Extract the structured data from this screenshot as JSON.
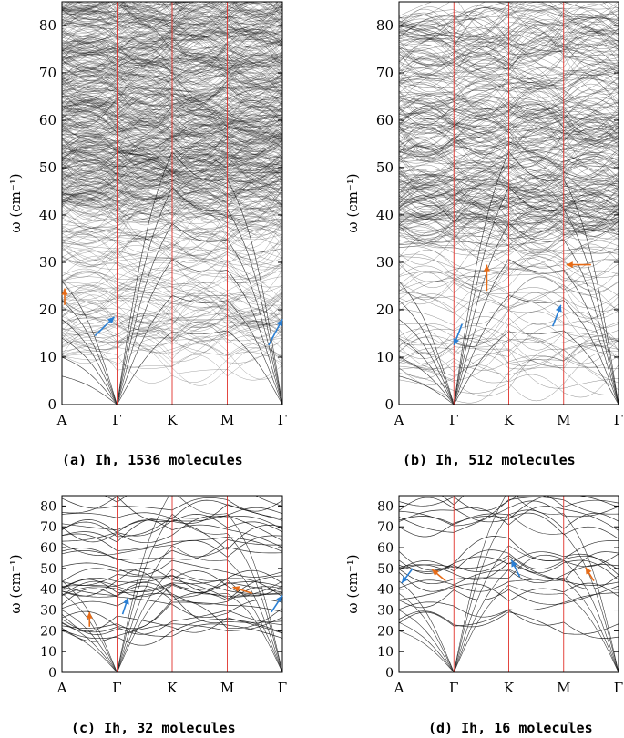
{
  "chart_data": [
    {
      "type": "line",
      "caption": {
        "label": "(a)",
        "name": "Ih",
        "count": "1536 molecules"
      },
      "ylabel": "ω (cm⁻¹)",
      "ylim": [
        0,
        85
      ],
      "yticks": [
        0,
        10,
        20,
        30,
        40,
        50,
        60,
        70,
        80
      ],
      "x_points": [
        "A",
        "Γ",
        "K",
        "M",
        "Γ"
      ],
      "x_positions": [
        0,
        1,
        2,
        3,
        4
      ],
      "acoustic_at_gamma_edges": [
        11,
        15,
        19,
        23
      ],
      "band_density_high": [
        45,
        85
      ],
      "annotations": [
        {
          "color": "#e66b17",
          "at": [
            "A",
            21
          ],
          "to": [
            "A",
            24.5
          ]
        },
        {
          "color": "#2a7fd4",
          "at": [
            0.6,
            14.5
          ],
          "to": [
            0.95,
            18.5
          ]
        },
        {
          "color": "#2a7fd4",
          "at": [
            3.75,
            12.5
          ],
          "to": [
            4.0,
            18
          ]
        }
      ]
    },
    {
      "type": "line",
      "caption": {
        "label": "(b)",
        "name": "Ih",
        "count": "512 molecules"
      },
      "ylabel": "ω (cm⁻¹)",
      "ylim": [
        0,
        85
      ],
      "yticks": [
        0,
        10,
        20,
        30,
        40,
        50,
        60,
        70,
        80
      ],
      "x_points": [
        "A",
        "Γ",
        "K",
        "M",
        "Γ"
      ],
      "x_positions": [
        0,
        1,
        2,
        3,
        4
      ],
      "band_density_high": [
        38,
        85
      ],
      "annotations": [
        {
          "color": "#2a7fd4",
          "at": [
            1.15,
            17
          ],
          "to": [
            1.0,
            12.5
          ]
        },
        {
          "color": "#e66b17",
          "at": [
            1.6,
            24
          ],
          "to": [
            1.6,
            29.5
          ]
        },
        {
          "color": "#2a7fd4",
          "at": [
            2.8,
            16.5
          ],
          "to": [
            2.95,
            21
          ]
        },
        {
          "color": "#e66b17",
          "at": [
            3.5,
            29.5
          ],
          "to": [
            3.05,
            29.5
          ]
        }
      ]
    },
    {
      "type": "line",
      "caption": {
        "label": "(c)",
        "name": "Ih",
        "count": "32 molecules"
      },
      "ylabel": "ω (cm⁻¹)",
      "ylim": [
        0,
        85
      ],
      "yticks": [
        0,
        10,
        20,
        30,
        40,
        50,
        60,
        70,
        80
      ],
      "x_points": [
        "A",
        "Γ",
        "K",
        "M",
        "Γ"
      ],
      "x_positions": [
        0,
        1,
        2,
        3,
        4
      ],
      "annotations": [
        {
          "color": "#e66b17",
          "at": [
            0.5,
            22
          ],
          "to": [
            0.5,
            29
          ]
        },
        {
          "color": "#2a7fd4",
          "at": [
            1.1,
            28
          ],
          "to": [
            1.2,
            36
          ]
        },
        {
          "color": "#e66b17",
          "at": [
            3.45,
            38
          ],
          "to": [
            3.1,
            41
          ]
        },
        {
          "color": "#2a7fd4",
          "at": [
            3.8,
            29
          ],
          "to": [
            4.0,
            37
          ]
        }
      ]
    },
    {
      "type": "line",
      "caption": {
        "label": "(d)",
        "name": "Ih",
        "count": "16 molecules"
      },
      "ylabel": "ω (cm⁻¹)",
      "ylim": [
        0,
        85
      ],
      "yticks": [
        0,
        10,
        20,
        30,
        40,
        50,
        60,
        70,
        80
      ],
      "x_points": [
        "A",
        "Γ",
        "K",
        "M",
        "Γ"
      ],
      "x_positions": [
        0,
        1,
        2,
        3,
        4
      ],
      "annotations": [
        {
          "color": "#2a7fd4",
          "at": [
            0.25,
            50
          ],
          "to": [
            0.05,
            43
          ]
        },
        {
          "color": "#e66b17",
          "at": [
            0.85,
            44
          ],
          "to": [
            0.6,
            49.5
          ]
        },
        {
          "color": "#2a7fd4",
          "at": [
            2.2,
            46
          ],
          "to": [
            2.05,
            54
          ]
        },
        {
          "color": "#e66b17",
          "at": [
            3.55,
            44
          ],
          "to": [
            3.4,
            50.5
          ]
        }
      ]
    }
  ]
}
